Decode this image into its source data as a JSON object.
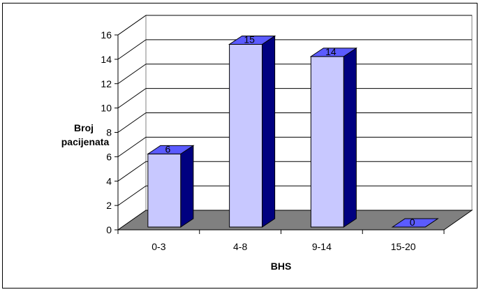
{
  "chart_data": {
    "type": "bar",
    "style": "3d-column",
    "categories": [
      "0-3",
      "4-8",
      "9-14",
      "15-20"
    ],
    "values": [
      6,
      15,
      14,
      0
    ],
    "data_labels": [
      "6",
      "15",
      "14",
      "0"
    ],
    "xlabel": "BHS",
    "ylabel_lines": [
      "Broj",
      "pacijenata"
    ],
    "ylim": [
      0,
      16
    ],
    "yticks": [
      "0",
      "2",
      "4",
      "6",
      "8",
      "10",
      "12",
      "14",
      "16"
    ],
    "grid": true,
    "legend": "none",
    "colors": {
      "bar_front": "#c8c8ff",
      "bar_side": "#000080",
      "bar_top": "#5b5bff",
      "floor": "#808080",
      "wall": "#ffffff",
      "grid": "#000000"
    }
  }
}
